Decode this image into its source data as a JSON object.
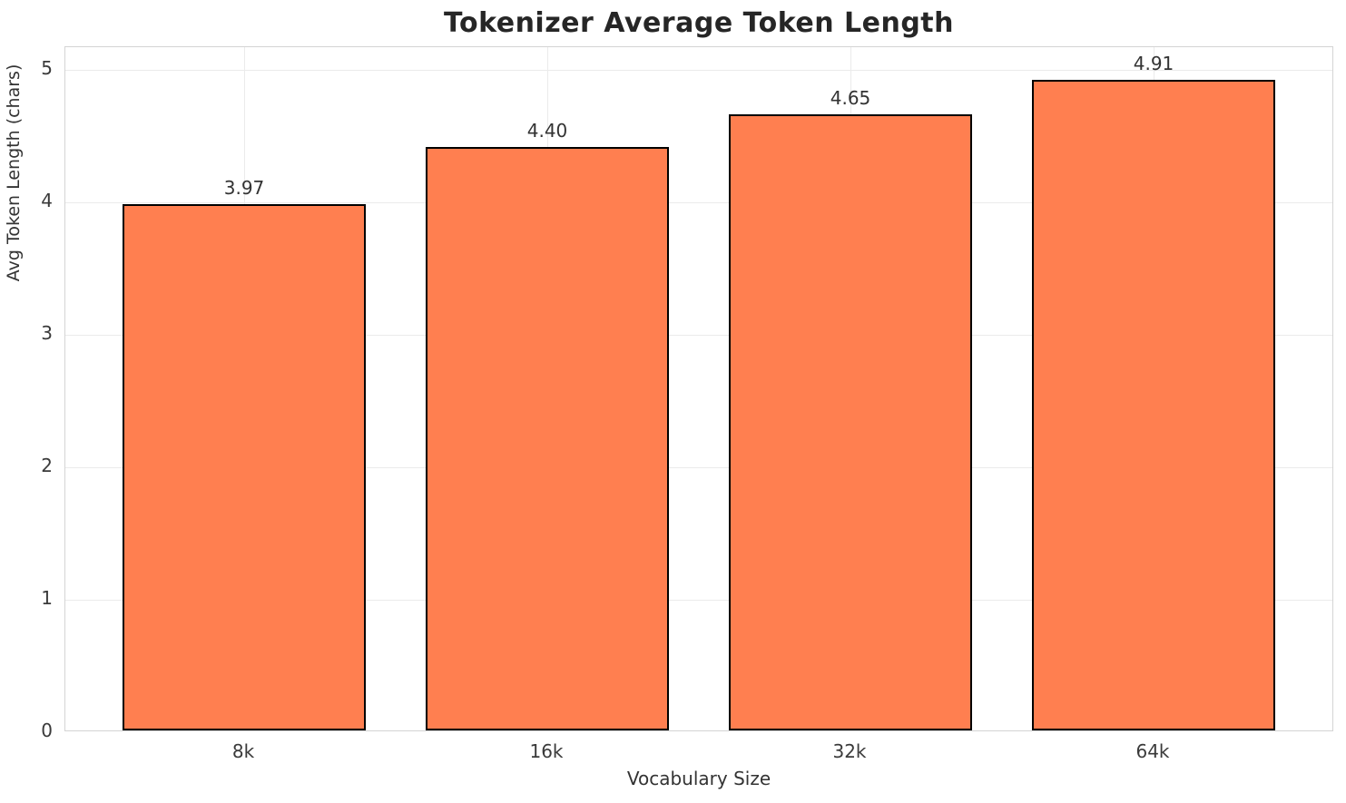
{
  "chart_data": {
    "type": "bar",
    "title": "Tokenizer Average Token Length",
    "xlabel": "Vocabulary Size",
    "ylabel": "Avg Token Length (chars)",
    "categories": [
      "8k",
      "16k",
      "32k",
      "64k"
    ],
    "values": [
      3.97,
      4.4,
      4.65,
      4.91
    ],
    "value_labels": [
      "3.97",
      "4.40",
      "4.65",
      "4.91"
    ],
    "yticks": [
      0,
      1,
      2,
      3,
      4,
      5
    ],
    "ylim": [
      0,
      5.17
    ],
    "grid": true,
    "legend": "none",
    "bar_color": "#FF7F50",
    "bar_edge_color": "#000000"
  }
}
